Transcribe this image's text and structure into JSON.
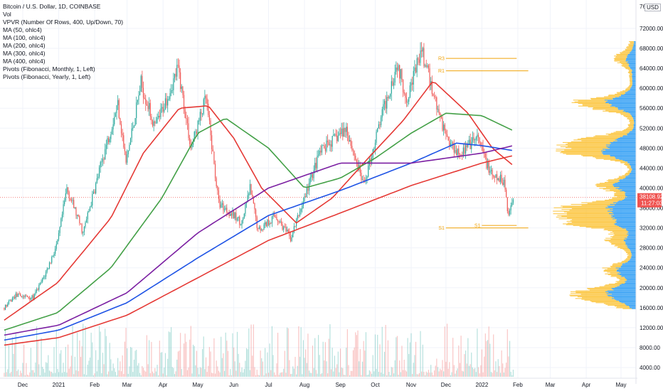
{
  "legend": {
    "symbol": "Bitcoin / U.S. Dollar, 1D, COINBASE",
    "vol": "Vol",
    "vpvr": "VPVR (Number Of Rows, 400, Up/Down, 70)",
    "ma50": "MA (50, ohlc4)",
    "ma100": "MA (100, ohlc4)",
    "ma200": "MA (200, ohlc4)",
    "ma300": "MA (300, ohlc4)",
    "ma400": "MA (400, ohlc4)",
    "piv_monthly": "Pivots (Fibonacci, Monthly, 1, Left)",
    "piv_yearly": "Pivots (Fibonacci, Yearly, 1, Left)"
  },
  "currency_button": "USD",
  "price_tag": {
    "price": "38108.92",
    "countdown": "11:27:03"
  },
  "colors": {
    "up": "#26a69a",
    "down": "#ef5350",
    "ma50": "#e53935",
    "ma100": "#43a047",
    "ma200": "#1e53e5",
    "ma300": "#7b1fa2",
    "ma400": "#e53935",
    "pivot": "#f0a30a",
    "vp_up": "#2196f3",
    "vp_down": "#fbc02d"
  },
  "chart_data": {
    "type": "candlestick",
    "title": "Bitcoin / U.S. Dollar, 1D, COINBASE",
    "ylim": [
      2000,
      76000
    ],
    "y_ticks": [
      "72000.00",
      "68000.00",
      "64000.00",
      "60000.00",
      "56000.00",
      "52000.00",
      "48000.00",
      "44000.00",
      "40000.00",
      "36000.00",
      "32000.00",
      "28000.00",
      "24000.00",
      "20000.00",
      "16000.00",
      "12000.00",
      "8000.00",
      "4000.00"
    ],
    "y_axis_top_label": "76",
    "x_ticks": [
      {
        "label": "Dec",
        "t": "2020-12-01"
      },
      {
        "label": "2021",
        "t": "2021-01-01"
      },
      {
        "label": "Feb",
        "t": "2021-02-01"
      },
      {
        "label": "Mar",
        "t": "2021-03-01"
      },
      {
        "label": "Apr",
        "t": "2021-04-01"
      },
      {
        "label": "May",
        "t": "2021-05-01"
      },
      {
        "label": "Jun",
        "t": "2021-06-01"
      },
      {
        "label": "Jul",
        "t": "2021-07-01"
      },
      {
        "label": "Aug",
        "t": "2021-08-01"
      },
      {
        "label": "Sep",
        "t": "2021-09-01"
      },
      {
        "label": "Oct",
        "t": "2021-10-01"
      },
      {
        "label": "Nov",
        "t": "2021-11-01"
      },
      {
        "label": "Dec",
        "t": "2021-12-01"
      },
      {
        "label": "2022",
        "t": "2022-01-01"
      },
      {
        "label": "Feb",
        "t": "2022-02-01"
      },
      {
        "label": "Mar",
        "t": "2022-03-01"
      },
      {
        "label": "Apr",
        "t": "2022-04-01"
      },
      {
        "label": "May",
        "t": "2022-05-01"
      }
    ],
    "price_path": [
      [
        "2020-11-15",
        16000
      ],
      [
        "2020-11-25",
        18500
      ],
      [
        "2020-12-10",
        18000
      ],
      [
        "2020-12-20",
        22500
      ],
      [
        "2020-12-31",
        29000
      ],
      [
        "2021-01-08",
        40000
      ],
      [
        "2021-01-22",
        31000
      ],
      [
        "2021-02-08",
        46000
      ],
      [
        "2021-02-21",
        57000
      ],
      [
        "2021-02-28",
        45000
      ],
      [
        "2021-03-13",
        61000
      ],
      [
        "2021-03-25",
        52000
      ],
      [
        "2021-04-14",
        64000
      ],
      [
        "2021-04-25",
        48000
      ],
      [
        "2021-05-08",
        58000
      ],
      [
        "2021-05-19",
        37000
      ],
      [
        "2021-06-08",
        33000
      ],
      [
        "2021-06-15",
        40000
      ],
      [
        "2021-06-22",
        31500
      ],
      [
        "2021-07-07",
        34500
      ],
      [
        "2021-07-20",
        29800
      ],
      [
        "2021-08-14",
        47000
      ],
      [
        "2021-08-23",
        49000
      ],
      [
        "2021-09-06",
        52000
      ],
      [
        "2021-09-21",
        40500
      ],
      [
        "2021-10-06",
        54000
      ],
      [
        "2021-10-20",
        65000
      ],
      [
        "2021-10-28",
        58000
      ],
      [
        "2021-11-10",
        67500
      ],
      [
        "2021-11-26",
        54000
      ],
      [
        "2021-12-04",
        49000
      ],
      [
        "2021-12-14",
        47000
      ],
      [
        "2021-12-28",
        50000
      ],
      [
        "2022-01-10",
        42000
      ],
      [
        "2022-01-20",
        41500
      ],
      [
        "2022-01-24",
        34500
      ],
      [
        "2022-01-28",
        38108.92
      ]
    ],
    "moving_averages": [
      {
        "name": "MA (50, ohlc4)",
        "points": [
          [
            "2020-11-15",
            13500
          ],
          [
            "2020-12-31",
            21000
          ],
          [
            "2021-02-15",
            34000
          ],
          [
            "2021-03-15",
            47000
          ],
          [
            "2021-04-15",
            56000
          ],
          [
            "2021-05-10",
            56500
          ],
          [
            "2021-06-01",
            50000
          ],
          [
            "2021-06-25",
            40000
          ],
          [
            "2021-07-25",
            33000
          ],
          [
            "2021-08-25",
            38000
          ],
          [
            "2021-09-25",
            46000
          ],
          [
            "2021-10-25",
            53500
          ],
          [
            "2021-11-20",
            61500
          ],
          [
            "2021-12-20",
            55000
          ],
          [
            "2022-01-10",
            48000
          ],
          [
            "2022-01-28",
            44500
          ]
        ]
      },
      {
        "name": "MA (100, ohlc4)",
        "points": [
          [
            "2020-11-15",
            11500
          ],
          [
            "2020-12-31",
            15000
          ],
          [
            "2021-02-15",
            24000
          ],
          [
            "2021-03-31",
            38000
          ],
          [
            "2021-05-01",
            51000
          ],
          [
            "2021-05-25",
            54000
          ],
          [
            "2021-07-01",
            48000
          ],
          [
            "2021-08-01",
            40000
          ],
          [
            "2021-09-01",
            42000
          ],
          [
            "2021-10-01",
            46000
          ],
          [
            "2021-11-01",
            51000
          ],
          [
            "2021-12-01",
            55000
          ],
          [
            "2022-01-01",
            54500
          ],
          [
            "2022-01-28",
            51500
          ]
        ]
      },
      {
        "name": "MA (200, ohlc4)",
        "points": [
          [
            "2020-11-15",
            9500
          ],
          [
            "2021-01-01",
            11500
          ],
          [
            "2021-03-01",
            17000
          ],
          [
            "2021-05-01",
            26000
          ],
          [
            "2021-07-01",
            34500
          ],
          [
            "2021-09-01",
            39500
          ],
          [
            "2021-11-01",
            45000
          ],
          [
            "2021-12-10",
            49000
          ],
          [
            "2022-01-01",
            48500
          ],
          [
            "2022-01-28",
            47500
          ]
        ]
      },
      {
        "name": "MA (300, ohlc4)",
        "points": [
          [
            "2020-11-15",
            10500
          ],
          [
            "2021-01-01",
            12500
          ],
          [
            "2021-03-01",
            19000
          ],
          [
            "2021-05-01",
            31000
          ],
          [
            "2021-07-01",
            40000
          ],
          [
            "2021-09-01",
            45000
          ],
          [
            "2021-11-01",
            45000
          ],
          [
            "2022-01-01",
            47000
          ],
          [
            "2022-01-28",
            48500
          ]
        ]
      },
      {
        "name": "MA (400, ohlc4)",
        "points": [
          [
            "2020-11-15",
            8500
          ],
          [
            "2021-01-01",
            10000
          ],
          [
            "2021-03-01",
            14500
          ],
          [
            "2021-05-01",
            22000
          ],
          [
            "2021-07-01",
            29500
          ],
          [
            "2021-09-01",
            35000
          ],
          [
            "2021-11-01",
            40500
          ],
          [
            "2022-01-01",
            45000
          ],
          [
            "2022-01-28",
            46500
          ]
        ]
      }
    ],
    "pivots": [
      {
        "label": "R3",
        "value": 66000,
        "from": "2021-12-01",
        "to": "2022-01-31"
      },
      {
        "label": "R1",
        "value": 63500,
        "from": "2021-12-01",
        "to": "2022-02-10"
      },
      {
        "label": "S1",
        "value": 32500,
        "from": "2022-01-01",
        "to": "2022-01-31"
      },
      {
        "label": "S1",
        "value": 32000,
        "from": "2021-12-01",
        "to": "2022-02-10"
      }
    ],
    "volume_profile_peaks": [
      {
        "price": 66000,
        "length": 0.2
      },
      {
        "price": 57000,
        "length": 0.75
      },
      {
        "price": 49500,
        "length": 0.5
      },
      {
        "price": 47500,
        "length": 0.95
      },
      {
        "price": 40500,
        "length": 0.4
      },
      {
        "price": 36000,
        "length": 0.8
      },
      {
        "price": 33500,
        "length": 0.95
      },
      {
        "price": 29500,
        "length": 0.3
      },
      {
        "price": 23500,
        "length": 0.35
      },
      {
        "price": 19000,
        "length": 0.6
      },
      {
        "price": 17500,
        "length": 0.3
      }
    ],
    "volume_scale": {
      "min": 4000,
      "max": 12000
    }
  }
}
